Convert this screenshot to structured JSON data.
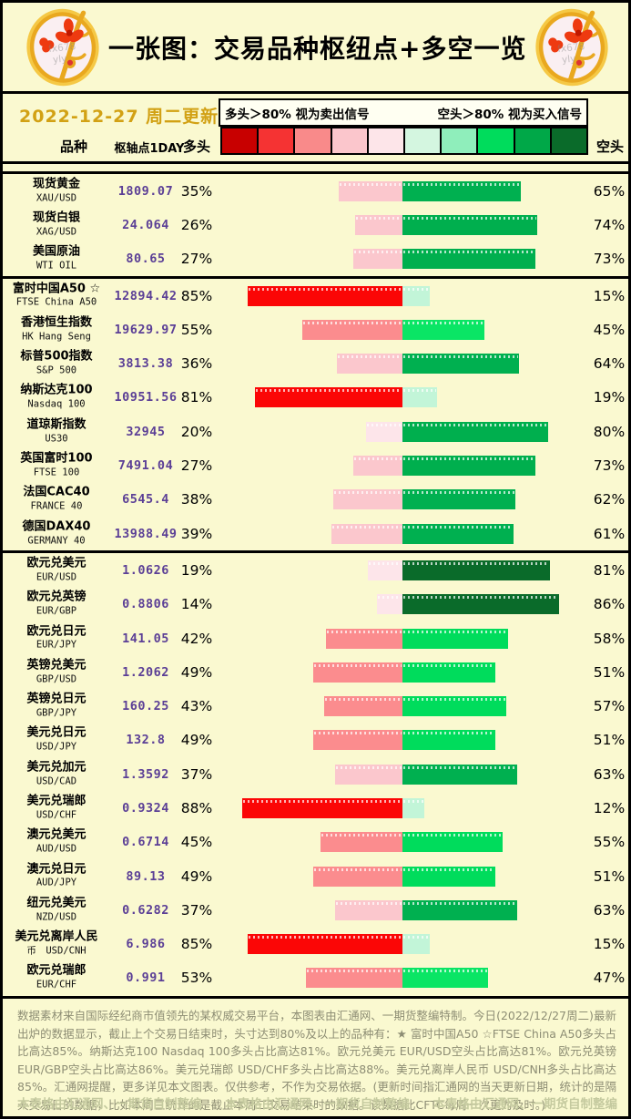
{
  "header": {
    "title": "一张图：交易品种枢纽点+多空一览",
    "date": "2022-12-27 周二更新",
    "legend_long": "多头＞80% 视为卖出信号",
    "legend_short": "空头＞80% 视为买入信号",
    "col_instrument": "品种",
    "col_pivot": "枢轴点1DAY",
    "col_long": "多头",
    "col_short": "空头"
  },
  "palette": {
    "background": "#FAF9D0",
    "date_color": "#D2A114",
    "pivot_color": "#5B3F96",
    "gradient": [
      "#C80000",
      "#F53333",
      "#F98A8A",
      "#FBC6CC",
      "#FDE5E9",
      "#D4F6E0",
      "#8FEEBB",
      "#00DC5C",
      "#00A848",
      "#0A6B2A"
    ],
    "long_by_decile": [
      "#FEF0F3",
      "#FDE5EA",
      "#FBC7CD",
      "#FBC7CD",
      "#FB8C8E",
      "#FB8C8E",
      "#F96A6A",
      "#F53B3B",
      "#FB0606",
      "#C80000"
    ],
    "short_by_decile": [
      "#E6FBEF",
      "#C2F5D8",
      "#9FF0C4",
      "#63E69A",
      "#0AE565",
      "#00DC5C",
      "#00B050",
      "#00AF4E",
      "#0A6B2A",
      "#07531F"
    ]
  },
  "chart_data": {
    "type": "bar",
    "title": "一张图：交易品种枢纽点+多空一览",
    "columns": [
      "品种",
      "枢轴点1DAY",
      "多头",
      "空头"
    ],
    "layout": "diverging horizontal bars centered, long% grows left (red shades), short% grows right (green shades), range 0-100% each side",
    "rows": [
      {
        "line1": "现货黄金",
        "line2": "XAU/USD",
        "pivot": "1809.07",
        "long_pct": 35,
        "short_pct": 65,
        "group_end": false
      },
      {
        "line1": "现货白银",
        "line2": "XAG/USD",
        "pivot": "24.064",
        "long_pct": 26,
        "short_pct": 74,
        "group_end": false
      },
      {
        "line1": "美国原油",
        "line2": "WTI OIL",
        "pivot": "80.65",
        "long_pct": 27,
        "short_pct": 73,
        "group_end": true
      },
      {
        "line1": "富时中国A50 ☆",
        "line2": "FTSE China A50",
        "pivot": "12894.42",
        "long_pct": 85,
        "short_pct": 15,
        "group_end": false
      },
      {
        "line1": "香港恒生指数",
        "line2": "HK Hang Seng",
        "pivot": "19629.97",
        "long_pct": 55,
        "short_pct": 45,
        "group_end": false
      },
      {
        "line1": "标普500指数",
        "line2": "S&P 500",
        "pivot": "3813.38",
        "long_pct": 36,
        "short_pct": 64,
        "group_end": false
      },
      {
        "line1": "纳斯达克100",
        "line2": "Nasdaq 100",
        "pivot": "10951.56",
        "long_pct": 81,
        "short_pct": 19,
        "group_end": false
      },
      {
        "line1": "道琼斯指数",
        "line2": "US30",
        "pivot": "32945",
        "long_pct": 20,
        "short_pct": 80,
        "group_end": false
      },
      {
        "line1": "英国富时100",
        "line2": "FTSE 100",
        "pivot": "7491.04",
        "long_pct": 27,
        "short_pct": 73,
        "group_end": false
      },
      {
        "line1": "法国CAC40",
        "line2": "FRANCE 40",
        "pivot": "6545.4",
        "long_pct": 38,
        "short_pct": 62,
        "group_end": false
      },
      {
        "line1": "德国DAX40",
        "line2": "GERMANY 40",
        "pivot": "13988.49",
        "long_pct": 39,
        "short_pct": 61,
        "group_end": true
      },
      {
        "line1": "欧元兑美元",
        "line2": "EUR/USD",
        "pivot": "1.0626",
        "long_pct": 19,
        "short_pct": 81,
        "group_end": false
      },
      {
        "line1": "欧元兑英镑",
        "line2": "EUR/GBP",
        "pivot": "0.8806",
        "long_pct": 14,
        "short_pct": 86,
        "group_end": false
      },
      {
        "line1": "欧元兑日元",
        "line2": "EUR/JPY",
        "pivot": "141.05",
        "long_pct": 42,
        "short_pct": 58,
        "group_end": false
      },
      {
        "line1": "英镑兑美元",
        "line2": "GBP/USD",
        "pivot": "1.2062",
        "long_pct": 49,
        "short_pct": 51,
        "group_end": false
      },
      {
        "line1": "英镑兑日元",
        "line2": "GBP/JPY",
        "pivot": "160.25",
        "long_pct": 43,
        "short_pct": 57,
        "group_end": false
      },
      {
        "line1": "美元兑日元",
        "line2": "USD/JPY",
        "pivot": "132.8",
        "long_pct": 49,
        "short_pct": 51,
        "group_end": false
      },
      {
        "line1": "美元兑加元",
        "line2": "USD/CAD",
        "pivot": "1.3592",
        "long_pct": 37,
        "short_pct": 63,
        "group_end": false
      },
      {
        "line1": "美元兑瑞郎",
        "line2": "USD/CHF",
        "pivot": "0.9324",
        "long_pct": 88,
        "short_pct": 12,
        "group_end": false
      },
      {
        "line1": "澳元兑美元",
        "line2": "AUD/USD",
        "pivot": "0.6714",
        "long_pct": 45,
        "short_pct": 55,
        "group_end": false
      },
      {
        "line1": "澳元兑日元",
        "line2": "AUD/JPY",
        "pivot": "89.13",
        "long_pct": 49,
        "short_pct": 51,
        "group_end": false
      },
      {
        "line1": "纽元兑美元",
        "line2": "NZD/USD",
        "pivot": "0.6282",
        "long_pct": 37,
        "short_pct": 63,
        "group_end": false
      },
      {
        "line1": "美元兑离岸人民",
        "line2": "币　USD/CNH",
        "pivot": "6.986",
        "long_pct": 85,
        "short_pct": 15,
        "group_end": false
      },
      {
        "line1": "欧元兑瑞郎",
        "line2": "EUR/CHF",
        "pivot": "0.991",
        "long_pct": 53,
        "short_pct": 47,
        "group_end": false
      }
    ]
  },
  "footer": {
    "paragraph": "数据素材来自国际经纪商市值领先的某权威交易平台，本图表由汇通网、一期货整编特制。今日(2022/12/27周二)最新出炉的数据显示，截止上个交易日结束时，头寸达到80%及以上的品种有：★ 富时中国A50 ☆FTSE China A50多头占比高达85%。纳斯达克100 Nasdaq 100多头占比高达81%。欧元兑美元 EUR/USD空头占比高达81%。欧元兑英镑 EUR/GBP空头占比高达86%。美元兑瑞郎 USD/CHF多头占比高达88%。美元兑离岸人民币 USD/CNH多头占比高达85%。汇通网提醒，更多详见本文图表。仅供参考，不作为交易依据。(更新时间指汇通网的当天更新日期，统计的是隔天交易日的数据，比如本周三统计的是截止本周二交易结束时的数据。该数据比CFTC每周一次更为及时。)",
    "watermark": "本表格由汇通网、一期货自制整编"
  }
}
